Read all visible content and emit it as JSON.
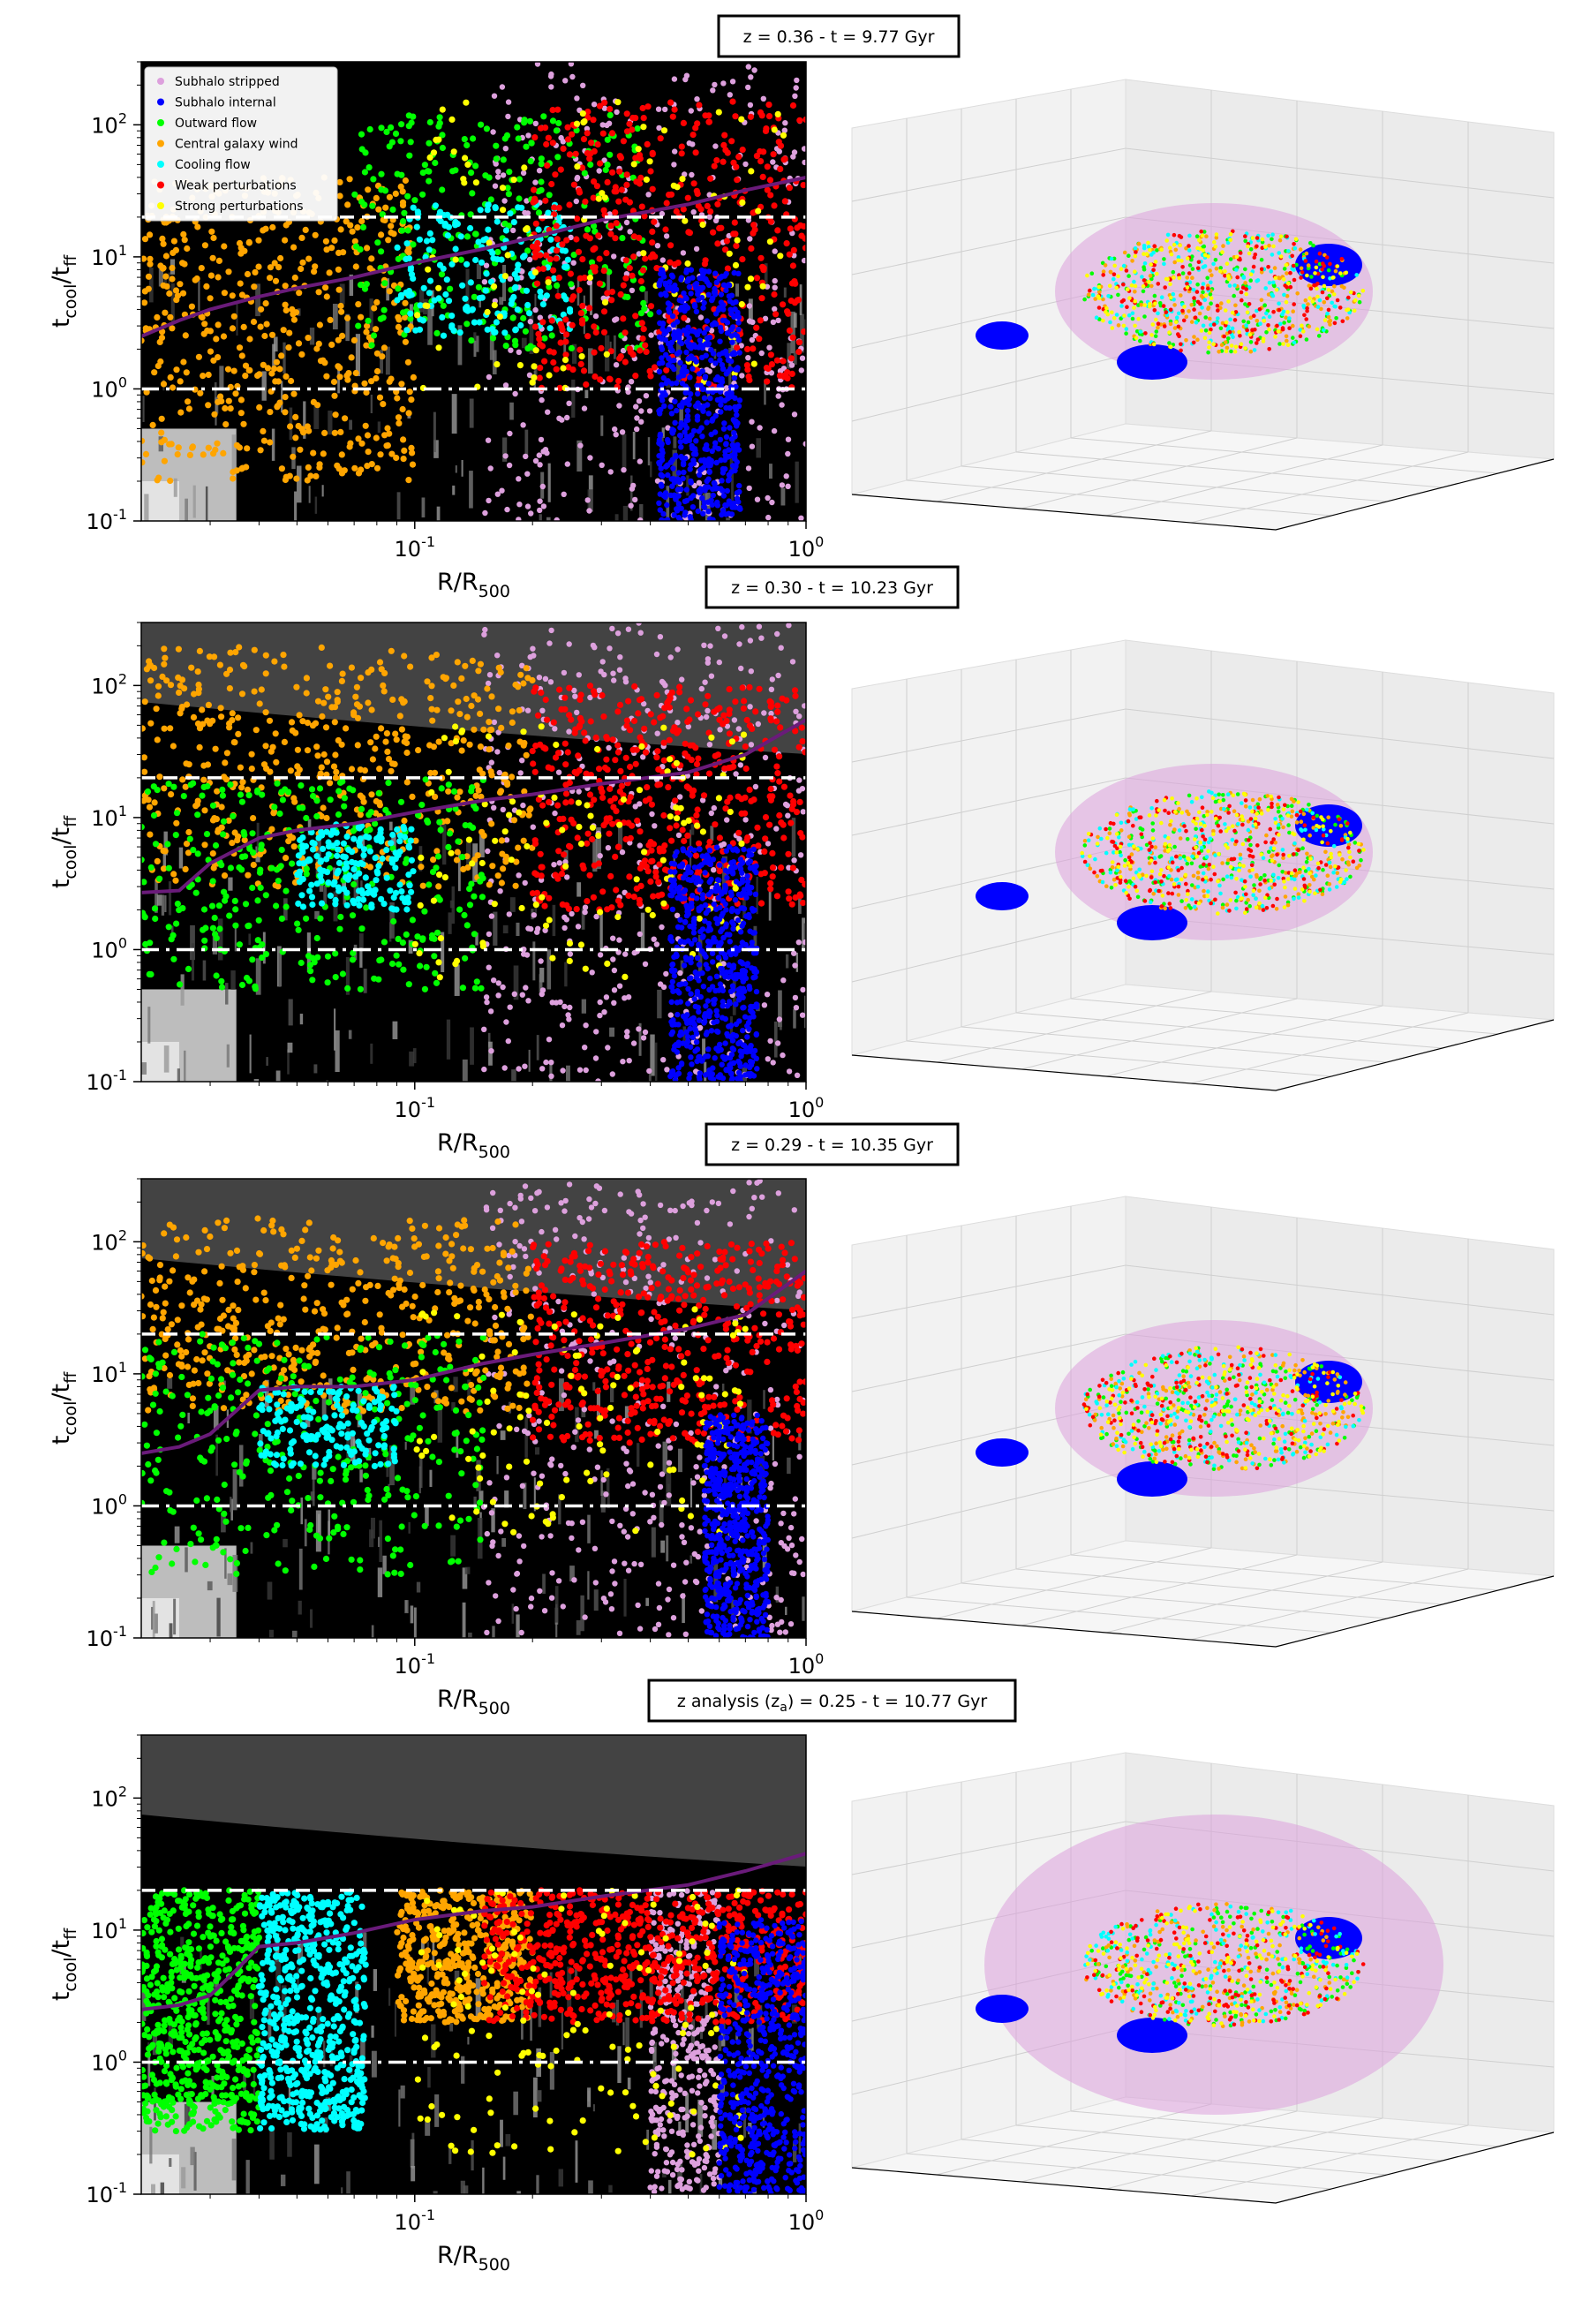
{
  "colors": {
    "Subhalo stripped": "#dda0dd",
    "Subhalo internal": "#0000ff",
    "Outward flow": "#00ff00",
    "Central galaxy wind": "#ffa500",
    "Cooling flow": "#00ffff",
    "Weak perturbations": "#ff0000",
    "Strong perturbations": "#ffff00",
    "median_line": "#6a1b7a",
    "threshold_line": "#ffffff"
  },
  "chart_data": [
    {
      "type": "scatter",
      "title": "z = 0.36 - t = 9.77 Gyr",
      "xlabel": "R/R500",
      "ylabel": "tcool/tff",
      "xscale": "log",
      "yscale": "log",
      "xlim": [
        0.02,
        1.0
      ],
      "ylim": [
        0.1,
        300
      ],
      "xtick_labels": [
        "10^-1",
        "10^0"
      ],
      "ytick_labels": [
        "10^-1",
        "10^0",
        "10^1",
        "10^2"
      ],
      "legend": {
        "placement": "upper left",
        "entries": [
          "Subhalo stripped",
          "Subhalo internal",
          "Outward flow",
          "Central galaxy wind",
          "Cooling flow",
          "Weak perturbations",
          "Strong perturbations"
        ]
      },
      "hlines": [
        {
          "y": 20,
          "style": "dashed"
        },
        {
          "y": 1,
          "style": "dashdot"
        }
      ],
      "median_line": {
        "x": [
          0.02,
          0.025,
          0.03,
          0.04,
          0.05,
          0.07,
          0.1,
          0.15,
          0.2,
          0.3,
          0.5,
          0.7,
          1.0
        ],
        "y": [
          2.5,
          3.3,
          4.0,
          5.0,
          5.8,
          7.0,
          9.0,
          11.5,
          14,
          19,
          25,
          32,
          40
        ]
      },
      "series": [
        {
          "name": "Central galaxy wind",
          "x_range": [
            0.02,
            0.1
          ],
          "y_range": [
            0.2,
            40
          ],
          "count": 520
        },
        {
          "name": "Cooling flow",
          "x_range": [
            0.09,
            0.25
          ],
          "y_range": [
            2.5,
            25
          ],
          "count": 200
        },
        {
          "name": "Outward flow",
          "x_range": [
            0.07,
            0.4
          ],
          "y_range": [
            2,
            120
          ],
          "count": 280
        },
        {
          "name": "Weak perturbations",
          "x_range": [
            0.2,
            1.0
          ],
          "y_range": [
            1,
            150
          ],
          "count": 480
        },
        {
          "name": "Strong perturbations",
          "x_range": [
            0.1,
            0.9
          ],
          "y_range": [
            1,
            150
          ],
          "count": 110
        },
        {
          "name": "Subhalo stripped",
          "x_range": [
            0.15,
            1.0
          ],
          "y_range": [
            0.1,
            300
          ],
          "count": 420
        },
        {
          "name": "Subhalo internal",
          "x_range": [
            0.42,
            0.68
          ],
          "y_range": [
            0.1,
            8
          ],
          "count": 600
        }
      ]
    },
    {
      "type": "scatter",
      "title": "z = 0.30 - t = 10.23 Gyr",
      "xlabel": "R/R500",
      "ylabel": "tcool/tff",
      "xscale": "log",
      "yscale": "log",
      "xlim": [
        0.02,
        1.0
      ],
      "ylim": [
        0.1,
        300
      ],
      "xtick_labels": [
        "10^-1",
        "10^0"
      ],
      "ytick_labels": [
        "10^-1",
        "10^0",
        "10^1",
        "10^2"
      ],
      "hlines": [
        {
          "y": 20,
          "style": "dashed"
        },
        {
          "y": 1,
          "style": "dashdot"
        }
      ],
      "median_line": {
        "x": [
          0.02,
          0.025,
          0.03,
          0.04,
          0.05,
          0.07,
          0.1,
          0.15,
          0.2,
          0.3,
          0.5,
          0.7,
          1.0
        ],
        "y": [
          2.7,
          2.8,
          4.5,
          7.0,
          8.0,
          9.0,
          11,
          13.5,
          15,
          18,
          22,
          30,
          55
        ]
      },
      "series": [
        {
          "name": "Central galaxy wind",
          "x_range": [
            0.02,
            0.2
          ],
          "y_range": [
            3,
            200
          ],
          "count": 500
        },
        {
          "name": "Outward flow",
          "x_range": [
            0.02,
            0.15
          ],
          "y_range": [
            0.5,
            20
          ],
          "count": 320
        },
        {
          "name": "Cooling flow",
          "x_range": [
            0.05,
            0.1
          ],
          "y_range": [
            2,
            9
          ],
          "count": 180
        },
        {
          "name": "Weak perturbations",
          "x_range": [
            0.2,
            1.0
          ],
          "y_range": [
            2,
            100
          ],
          "count": 480
        },
        {
          "name": "Strong perturbations",
          "x_range": [
            0.1,
            0.7
          ],
          "y_range": [
            0.6,
            50
          ],
          "count": 110
        },
        {
          "name": "Subhalo stripped",
          "x_range": [
            0.15,
            1.0
          ],
          "y_range": [
            0.1,
            300
          ],
          "count": 420
        },
        {
          "name": "Subhalo internal",
          "x_range": [
            0.45,
            0.75
          ],
          "y_range": [
            0.1,
            6
          ],
          "count": 600
        }
      ]
    },
    {
      "type": "scatter",
      "title": "z = 0.29 - t = 10.35 Gyr",
      "xlabel": "R/R500",
      "ylabel": "tcool/tff",
      "xscale": "log",
      "yscale": "log",
      "xlim": [
        0.02,
        1.0
      ],
      "ylim": [
        0.1,
        300
      ],
      "xtick_labels": [
        "10^-1",
        "10^0"
      ],
      "ytick_labels": [
        "10^-1",
        "10^0",
        "10^1",
        "10^2"
      ],
      "hlines": [
        {
          "y": 20,
          "style": "dashed"
        },
        {
          "y": 1,
          "style": "dashdot"
        }
      ],
      "median_line": {
        "x": [
          0.02,
          0.025,
          0.03,
          0.04,
          0.05,
          0.07,
          0.1,
          0.15,
          0.2,
          0.3,
          0.5,
          0.7,
          1.0
        ],
        "y": [
          2.5,
          2.8,
          3.5,
          7.5,
          8.0,
          8.0,
          9.0,
          12,
          14,
          17,
          22,
          28,
          60
        ]
      },
      "series": [
        {
          "name": "Central galaxy wind",
          "x_range": [
            0.02,
            0.2
          ],
          "y_range": [
            5,
            150
          ],
          "count": 480
        },
        {
          "name": "Outward flow",
          "x_range": [
            0.02,
            0.15
          ],
          "y_range": [
            0.3,
            20
          ],
          "count": 320
        },
        {
          "name": "Cooling flow",
          "x_range": [
            0.04,
            0.09
          ],
          "y_range": [
            2,
            8
          ],
          "count": 180
        },
        {
          "name": "Weak perturbations",
          "x_range": [
            0.2,
            1.0
          ],
          "y_range": [
            3,
            100
          ],
          "count": 480
        },
        {
          "name": "Strong perturbations",
          "x_range": [
            0.1,
            0.7
          ],
          "y_range": [
            0.6,
            40
          ],
          "count": 110
        },
        {
          "name": "Subhalo stripped",
          "x_range": [
            0.15,
            1.0
          ],
          "y_range": [
            0.1,
            300
          ],
          "count": 420
        },
        {
          "name": "Subhalo internal",
          "x_range": [
            0.55,
            0.8
          ],
          "y_range": [
            0.1,
            5
          ],
          "count": 600
        }
      ]
    },
    {
      "type": "scatter",
      "title": "z analysis (za) = 0.25 - t = 10.77 Gyr",
      "xlabel": "R/R500",
      "ylabel": "tcool/tff",
      "xscale": "log",
      "yscale": "log",
      "xlim": [
        0.02,
        1.0
      ],
      "ylim": [
        0.1,
        300
      ],
      "xtick_labels": [
        "10^-1",
        "10^0"
      ],
      "ytick_labels": [
        "10^-1",
        "10^0",
        "10^1",
        "10^2"
      ],
      "hlines": [
        {
          "y": 20,
          "style": "dashed"
        },
        {
          "y": 1,
          "style": "dashdot"
        }
      ],
      "median_line": {
        "x": [
          0.02,
          0.025,
          0.03,
          0.035,
          0.04,
          0.05,
          0.07,
          0.1,
          0.15,
          0.2,
          0.3,
          0.5,
          0.7,
          1.0
        ],
        "y": [
          2.5,
          2.7,
          3.2,
          5.0,
          7.5,
          8.0,
          9.5,
          12,
          14,
          15,
          18,
          22,
          28,
          38
        ]
      },
      "series": [
        {
          "name": "Outward flow",
          "x_range": [
            0.02,
            0.04
          ],
          "y_range": [
            0.3,
            20
          ],
          "count": 600
        },
        {
          "name": "Cooling flow",
          "x_range": [
            0.04,
            0.075
          ],
          "y_range": [
            0.3,
            20
          ],
          "count": 600
        },
        {
          "name": "Central galaxy wind",
          "x_range": [
            0.09,
            0.2
          ],
          "y_range": [
            2,
            20
          ],
          "count": 450
        },
        {
          "name": "Weak perturbations",
          "x_range": [
            0.15,
            1.0
          ],
          "y_range": [
            2,
            20
          ],
          "count": 700
        },
        {
          "name": "Strong perturbations",
          "x_range": [
            0.1,
            0.7
          ],
          "y_range": [
            0.2,
            20
          ],
          "count": 140
        },
        {
          "name": "Subhalo stripped",
          "x_range": [
            0.4,
            0.6
          ],
          "y_range": [
            0.1,
            20
          ],
          "count": 350
        },
        {
          "name": "Subhalo internal",
          "x_range": [
            0.6,
            1.0
          ],
          "y_range": [
            0.1,
            12
          ],
          "count": 600
        }
      ]
    }
  ]
}
